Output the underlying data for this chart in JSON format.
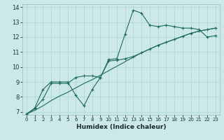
{
  "xlabel": "Humidex (Indice chaleur)",
  "xlim": [
    -0.5,
    23.5
  ],
  "ylim": [
    6.8,
    14.2
  ],
  "xticks": [
    0,
    1,
    2,
    3,
    4,
    5,
    6,
    7,
    8,
    9,
    10,
    11,
    12,
    13,
    14,
    15,
    16,
    17,
    18,
    19,
    20,
    21,
    22,
    23
  ],
  "yticks": [
    7,
    8,
    9,
    10,
    11,
    12,
    13,
    14
  ],
  "bg_color": "#cce8e8",
  "line_color": "#1e6b5e",
  "grid_color": "#aad4d4",
  "line1": {
    "x": [
      0,
      1,
      2,
      3,
      4,
      5,
      6,
      7,
      8,
      9,
      10,
      11,
      12,
      13,
      14,
      15,
      16,
      17,
      18,
      19,
      20,
      21,
      22,
      23
    ],
    "y": [
      6.85,
      7.25,
      8.5,
      9.0,
      9.0,
      9.0,
      8.1,
      7.4,
      8.5,
      9.3,
      10.5,
      10.55,
      12.2,
      13.8,
      13.6,
      12.8,
      12.7,
      12.8,
      12.7,
      12.6,
      12.6,
      12.5,
      12.0,
      12.1
    ]
  },
  "line2": {
    "x": [
      0,
      1,
      2,
      3,
      4,
      5,
      6,
      7,
      8,
      9,
      10,
      11,
      12,
      13,
      14,
      15,
      16,
      17,
      18,
      19,
      20,
      21,
      22,
      23
    ],
    "y": [
      6.85,
      7.1,
      7.4,
      7.75,
      8.05,
      8.3,
      8.6,
      8.9,
      9.15,
      9.45,
      9.75,
      10.05,
      10.35,
      10.65,
      10.95,
      11.2,
      11.45,
      11.65,
      11.85,
      12.05,
      12.25,
      12.4,
      12.5,
      12.6
    ]
  },
  "line3": {
    "x": [
      0,
      1,
      2,
      3,
      4,
      5,
      6,
      7,
      8,
      9,
      10,
      11,
      12,
      13,
      14,
      15,
      16,
      17,
      18,
      19,
      20,
      21,
      22,
      23
    ],
    "y": [
      6.85,
      7.2,
      7.85,
      8.9,
      8.9,
      8.9,
      9.3,
      9.4,
      9.4,
      9.3,
      10.4,
      10.45,
      10.55,
      10.7,
      10.95,
      11.2,
      11.45,
      11.65,
      11.85,
      12.05,
      12.25,
      12.4,
      12.5,
      12.6
    ]
  }
}
